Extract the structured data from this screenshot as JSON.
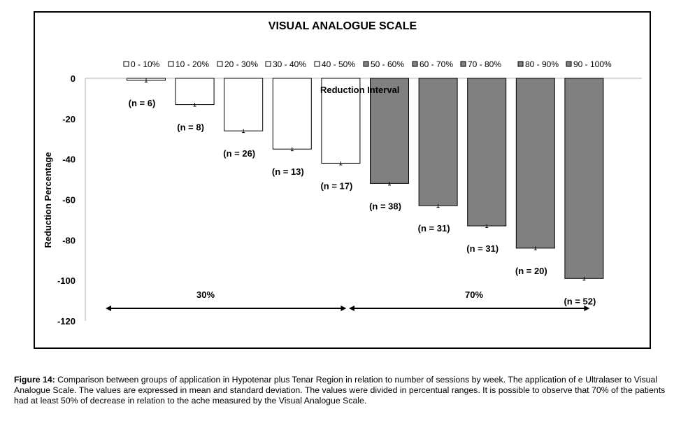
{
  "chart_data": {
    "type": "bar",
    "title": "VISUAL ANALOGUE SCALE",
    "ylabel": "Reduction Percentage",
    "xlabel": "Reduction Interval",
    "ylim": [
      -120,
      0
    ],
    "yticks": [
      0,
      -20,
      -40,
      -60,
      -80,
      -100,
      -120
    ],
    "grid": false,
    "legend_position": "top",
    "categories": [
      "0 - 10%",
      "10 - 20%",
      "20 - 30%",
      "30 - 40%",
      "40 - 50%",
      "50 - 60%",
      "60 - 70%",
      "70 - 80%",
      "80 - 90%",
      "90 - 100%"
    ],
    "values": [
      -1,
      -13,
      -26,
      -35,
      -42,
      -52,
      -63,
      -73,
      -84,
      -99
    ],
    "errors": [
      0.5,
      0.5,
      0.5,
      0.5,
      0.5,
      0.5,
      0.5,
      0.5,
      0.5,
      0.5
    ],
    "n_labels": [
      "(n = 6)",
      "(n = 8)",
      "(n = 26)",
      "(n = 13)",
      "(n = 17)",
      "(n = 38)",
      "(n = 31)",
      "(n = 31)",
      "(n = 20)",
      "(n = 52)"
    ],
    "bar_fill": [
      "#ffffff",
      "#ffffff",
      "#ffffff",
      "#ffffff",
      "#ffffff",
      "#808080",
      "#808080",
      "#808080",
      "#808080",
      "#808080"
    ],
    "annotations": [
      {
        "text": "30%",
        "from": "0 - 10%",
        "to": "40 - 50%"
      },
      {
        "text": "70%",
        "from": "50 - 60%",
        "to": "90 - 100%"
      }
    ]
  },
  "caption": {
    "label": "Figure 14:",
    "text": " Comparison between groups of application in Hypotenar plus Tenar Region in relation to number of sessions by week. The application of e Ultralaser to Visual Analogue Scale. The values are expressed in mean and standard deviation. The values were divided in percentual ranges. It is possible to observe that 70% of the patients had at least 50% of decrease in relation to the ache measured by the Visual Analogue Scale."
  }
}
